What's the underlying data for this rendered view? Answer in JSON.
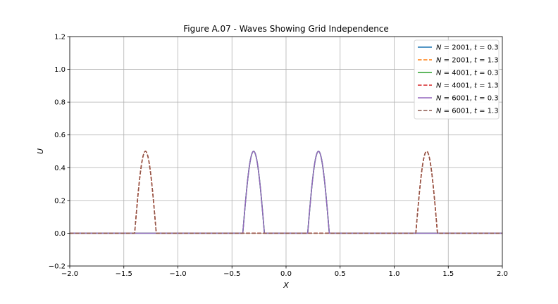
{
  "chart_data": {
    "type": "line",
    "title": "Figure A.07 - Waves Showing Grid Independence",
    "xlabel": "X",
    "ylabel": "U",
    "xlim": [
      -2.0,
      2.0
    ],
    "ylim": [
      -0.2,
      1.2
    ],
    "xticks": [
      -2.0,
      -1.5,
      -1.0,
      -0.5,
      0.0,
      0.5,
      1.0,
      1.5,
      2.0
    ],
    "xtick_labels": [
      "−2.0",
      "−1.5",
      "−1.0",
      "−0.5",
      "0.0",
      "0.5",
      "1.0",
      "1.5",
      "2.0"
    ],
    "yticks": [
      -0.2,
      0.0,
      0.2,
      0.4,
      0.6,
      0.8,
      1.0,
      1.2
    ],
    "ytick_labels": [
      "−0.2",
      "0.0",
      "0.2",
      "0.4",
      "0.6",
      "0.8",
      "1.0",
      "1.2"
    ],
    "grid": true,
    "legend_position": "upper right",
    "series": [
      {
        "name": "N = 2001, t = 0.3",
        "N": "2001",
        "t": "0.3",
        "color": "#1f77b4",
        "dash": "solid",
        "pulses": [
          {
            "center": -0.3,
            "half_width": 0.1,
            "amplitude": 0.5
          },
          {
            "center": 0.3,
            "half_width": 0.1,
            "amplitude": 0.5
          }
        ]
      },
      {
        "name": "N = 2001, t = 1.3",
        "N": "2001",
        "t": "1.3",
        "color": "#ff7f0e",
        "dash": "dashed",
        "pulses": [
          {
            "center": -1.3,
            "half_width": 0.1,
            "amplitude": 0.5
          },
          {
            "center": 1.3,
            "half_width": 0.1,
            "amplitude": 0.5
          }
        ]
      },
      {
        "name": "N = 4001, t = 0.3",
        "N": "4001",
        "t": "0.3",
        "color": "#2ca02c",
        "dash": "solid",
        "pulses": [
          {
            "center": -0.3,
            "half_width": 0.1,
            "amplitude": 0.5
          },
          {
            "center": 0.3,
            "half_width": 0.1,
            "amplitude": 0.5
          }
        ]
      },
      {
        "name": "N = 4001, t = 1.3",
        "N": "4001",
        "t": "1.3",
        "color": "#d62728",
        "dash": "dashed",
        "pulses": [
          {
            "center": -1.3,
            "half_width": 0.1,
            "amplitude": 0.5
          },
          {
            "center": 1.3,
            "half_width": 0.1,
            "amplitude": 0.5
          }
        ]
      },
      {
        "name": "N = 6001, t = 0.3",
        "N": "6001",
        "t": "0.3",
        "color": "#9467bd",
        "dash": "solid",
        "pulses": [
          {
            "center": -0.3,
            "half_width": 0.1,
            "amplitude": 0.5
          },
          {
            "center": 0.3,
            "half_width": 0.1,
            "amplitude": 0.5
          }
        ]
      },
      {
        "name": "N = 6001, t = 1.3",
        "N": "6001",
        "t": "1.3",
        "color": "#8c564b",
        "dash": "dashed",
        "pulses": [
          {
            "center": -1.3,
            "half_width": 0.1,
            "amplitude": 0.5
          },
          {
            "center": 1.3,
            "half_width": 0.1,
            "amplitude": 0.5
          }
        ]
      }
    ]
  }
}
